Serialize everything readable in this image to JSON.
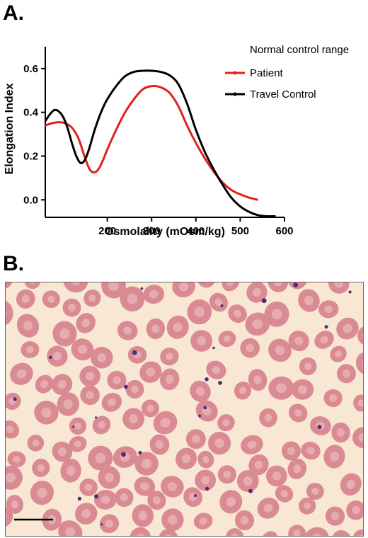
{
  "panel_a": {
    "label": "A."
  },
  "panel_b": {
    "label": "B."
  },
  "chart_data": {
    "type": "line",
    "xlabel": "Osmolality (mOsm/kg)",
    "ylabel": "Elongation Index",
    "xlim": [
      60,
      600
    ],
    "ylim": [
      -0.08,
      0.7
    ],
    "xticks": [
      200,
      300,
      400,
      500,
      600
    ],
    "yticks": [
      0.0,
      0.2,
      0.4,
      0.6
    ],
    "ytick_labels": [
      "0.0",
      "0.2",
      "0.4",
      "0.6"
    ],
    "grid": false,
    "legend": {
      "placement": "top-right",
      "header": "Normal control range",
      "entries": [
        "Patient",
        "Travel Control"
      ]
    },
    "series": [
      {
        "name": "Patient",
        "color": "#e0201c",
        "x": [
          60,
          75,
          90,
          105,
          120,
          135,
          150,
          160,
          170,
          180,
          190,
          200,
          220,
          240,
          260,
          280,
          300,
          320,
          340,
          360,
          380,
          400,
          420,
          440,
          460,
          480,
          500,
          520,
          540
        ],
        "y": [
          0.34,
          0.35,
          0.355,
          0.35,
          0.33,
          0.28,
          0.19,
          0.14,
          0.125,
          0.14,
          0.18,
          0.23,
          0.32,
          0.4,
          0.46,
          0.505,
          0.52,
          0.515,
          0.49,
          0.43,
          0.34,
          0.26,
          0.19,
          0.13,
          0.08,
          0.045,
          0.025,
          0.01,
          0.0
        ]
      },
      {
        "name": "Travel Control",
        "color": "#000000",
        "x": [
          60,
          70,
          80,
          90,
          100,
          110,
          120,
          130,
          140,
          150,
          160,
          170,
          180,
          190,
          200,
          220,
          240,
          260,
          280,
          300,
          320,
          340,
          360,
          380,
          400,
          420,
          440,
          460,
          480,
          500,
          520,
          540,
          560,
          580
        ],
        "y": [
          0.36,
          0.39,
          0.41,
          0.405,
          0.38,
          0.33,
          0.26,
          0.2,
          0.168,
          0.185,
          0.24,
          0.31,
          0.37,
          0.42,
          0.46,
          0.52,
          0.565,
          0.585,
          0.59,
          0.59,
          0.585,
          0.57,
          0.53,
          0.44,
          0.32,
          0.22,
          0.14,
          0.07,
          0.01,
          -0.03,
          -0.055,
          -0.07,
          -0.075,
          -0.075
        ]
      }
    ]
  },
  "micrograph": {
    "background_color": "#f7e7d3",
    "cell_color": "#d98a92",
    "platelet_color": "#4d2d7a",
    "scale_bar": true
  }
}
